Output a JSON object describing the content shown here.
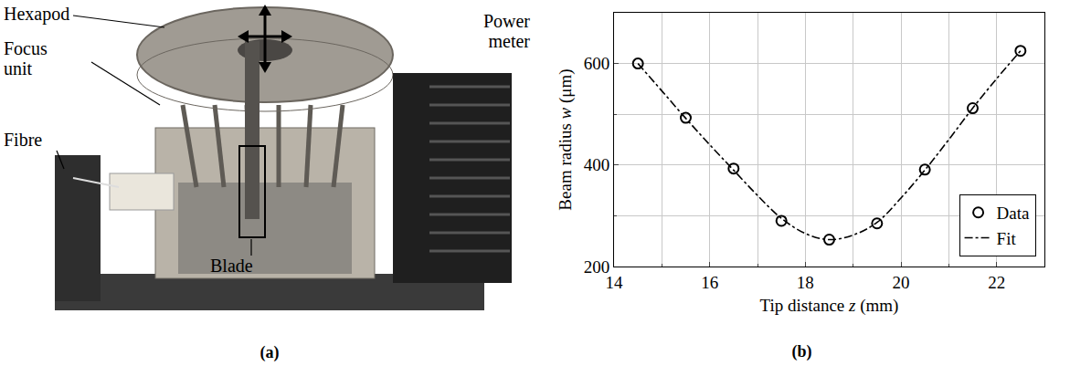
{
  "photo": {
    "labels": [
      "Hexapod",
      "Focus unit",
      "Fibre",
      "Power meter",
      "Blade"
    ],
    "caption": "(a)"
  },
  "chart_data": {
    "type": "scatter",
    "caption": "(b)",
    "x_label": "Tip distance z (mm)",
    "y_label": "Beam radius w (μm)",
    "xlim": [
      14,
      23
    ],
    "xticks": [
      14,
      16,
      18,
      20,
      22
    ],
    "ylim": [
      200,
      700
    ],
    "yticks": [
      200,
      400,
      600
    ],
    "grid": true,
    "legend": "bottom right",
    "series": [
      {
        "name": "Data",
        "type": "scatter",
        "marker": "open circle",
        "color": "#000000",
        "x": [
          14.5,
          15.5,
          16.5,
          17.5,
          18.5,
          19.5,
          20.5,
          21.5,
          22.5
        ],
        "values": [
          600,
          493,
          393,
          290,
          253,
          285,
          391,
          512,
          625
        ]
      },
      {
        "name": "Fit",
        "type": "line",
        "line_style": "dashdot",
        "color": "#000000",
        "x": [
          14.5,
          15,
          15.5,
          16,
          16.5,
          17,
          17.5,
          18,
          18.5,
          19,
          19.5,
          20,
          20.5,
          21,
          21.5,
          22,
          22.5
        ],
        "values": [
          600,
          546,
          492,
          440,
          390,
          340,
          295,
          265,
          253,
          262,
          287,
          335,
          390,
          450,
          512,
          570,
          625
        ]
      }
    ]
  }
}
